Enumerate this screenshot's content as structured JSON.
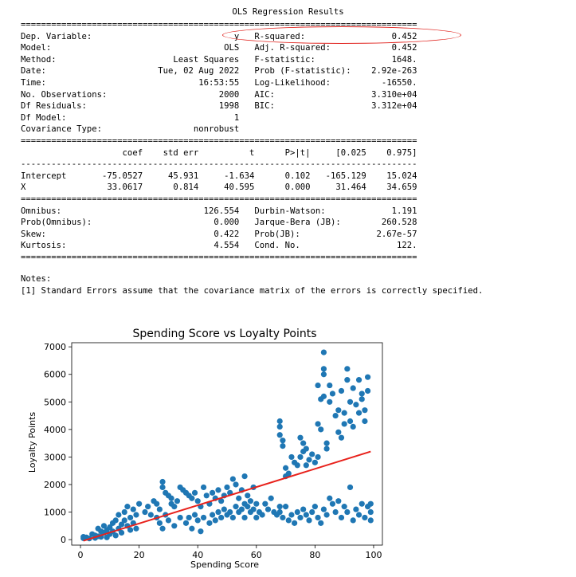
{
  "summary": {
    "title": "OLS Regression Results",
    "separator": "==============================================================================",
    "dash_separator": "------------------------------------------------------------------------------",
    "top_rows": [
      [
        "Dep. Variable:",
        "y",
        "R-squared:",
        "0.452"
      ],
      [
        "Model:",
        "OLS",
        "Adj. R-squared:",
        "0.452"
      ],
      [
        "Method:",
        "Least Squares",
        "F-statistic:",
        "1648."
      ],
      [
        "Date:",
        "Tue, 02 Aug 2022",
        "Prob (F-statistic):",
        "2.92e-263"
      ],
      [
        "Time:",
        "16:53:55",
        "Log-Likelihood:",
        "-16550."
      ],
      [
        "No. Observations:",
        "2000",
        "AIC:",
        "3.310e+04"
      ],
      [
        "Df Residuals:",
        "1998",
        "BIC:",
        "3.312e+04"
      ],
      [
        "Df Model:",
        "1",
        "",
        ""
      ],
      [
        "Covariance Type:",
        "nonrobust",
        "",
        ""
      ]
    ],
    "coef_header": [
      "",
      "coef",
      "std err",
      "t",
      "P>|t|",
      "[0.025",
      "0.975]"
    ],
    "coef_rows": [
      [
        "Intercept",
        "-75.0527",
        "45.931",
        "-1.634",
        "0.102",
        "-165.129",
        "15.024"
      ],
      [
        "X",
        "33.0617",
        "0.814",
        "40.595",
        "0.000",
        "31.464",
        "34.659"
      ]
    ],
    "diag_rows": [
      [
        "Omnibus:",
        "126.554",
        "Durbin-Watson:",
        "1.191"
      ],
      [
        "Prob(Omnibus):",
        "0.000",
        "Jarque-Bera (JB):",
        "260.528"
      ],
      [
        "Skew:",
        "0.422",
        "Prob(JB):",
        "2.67e-57"
      ],
      [
        "Kurtosis:",
        "4.554",
        "Cond. No.",
        "122."
      ]
    ],
    "notes_title": "Notes:",
    "notes_line": "[1] Standard Errors assume that the covariance matrix of the errors is correctly specified."
  },
  "colors": {
    "point": "#1f77b4",
    "fit_line": "#e8211b",
    "highlight": "#e0201b"
  },
  "chart_data": {
    "type": "scatter",
    "title": "Spending Score vs Loyalty Points",
    "xlabel": "Spending Score",
    "ylabel": "Loyalty Points",
    "xlim": [
      -3,
      103
    ],
    "ylim": [
      -200,
      7150
    ],
    "xticks": [
      0,
      20,
      40,
      60,
      80,
      100
    ],
    "yticks": [
      0,
      1000,
      2000,
      3000,
      4000,
      5000,
      6000,
      7000
    ],
    "grid": false,
    "fit_line": {
      "intercept": -75.0527,
      "slope": 33.0617,
      "x": [
        1,
        99
      ]
    },
    "points": [
      [
        1,
        100
      ],
      [
        1,
        50
      ],
      [
        2,
        80
      ],
      [
        3,
        40
      ],
      [
        4,
        200
      ],
      [
        5,
        150
      ],
      [
        5,
        60
      ],
      [
        6,
        120
      ],
      [
        6,
        400
      ],
      [
        7,
        300
      ],
      [
        7,
        100
      ],
      [
        8,
        250
      ],
      [
        8,
        500
      ],
      [
        9,
        350
      ],
      [
        9,
        80
      ],
      [
        10,
        200
      ],
      [
        10,
        450
      ],
      [
        11,
        600
      ],
      [
        11,
        300
      ],
      [
        12,
        150
      ],
      [
        12,
        700
      ],
      [
        13,
        400
      ],
      [
        13,
        900
      ],
      [
        14,
        550
      ],
      [
        14,
        250
      ],
      [
        15,
        1000
      ],
      [
        15,
        700
      ],
      [
        16,
        500
      ],
      [
        16,
        1200
      ],
      [
        17,
        800
      ],
      [
        17,
        350
      ],
      [
        18,
        1100
      ],
      [
        18,
        600
      ],
      [
        19,
        400
      ],
      [
        19,
        900
      ],
      [
        20,
        1300
      ],
      [
        22,
        1000
      ],
      [
        23,
        1200
      ],
      [
        24,
        900
      ],
      [
        25,
        1400
      ],
      [
        26,
        1300
      ],
      [
        27,
        1100
      ],
      [
        28,
        2100
      ],
      [
        28,
        1900
      ],
      [
        29,
        1700
      ],
      [
        30,
        1600
      ],
      [
        31,
        1500
      ],
      [
        31,
        1300
      ],
      [
        32,
        1200
      ],
      [
        33,
        1400
      ],
      [
        34,
        1900
      ],
      [
        35,
        1800
      ],
      [
        36,
        1700
      ],
      [
        37,
        1600
      ],
      [
        37,
        800
      ],
      [
        38,
        1500
      ],
      [
        39,
        1700
      ],
      [
        40,
        1400
      ],
      [
        41,
        1200
      ],
      [
        42,
        1900
      ],
      [
        43,
        1600
      ],
      [
        44,
        1300
      ],
      [
        45,
        1700
      ],
      [
        46,
        1500
      ],
      [
        47,
        1800
      ],
      [
        48,
        1400
      ],
      [
        49,
        1600
      ],
      [
        50,
        1900
      ],
      [
        51,
        1700
      ],
      [
        52,
        2200
      ],
      [
        53,
        2000
      ],
      [
        54,
        1500
      ],
      [
        55,
        1800
      ],
      [
        56,
        2300
      ],
      [
        56,
        1300
      ],
      [
        57,
        1600
      ],
      [
        58,
        1400
      ],
      [
        59,
        1900
      ],
      [
        60,
        1300
      ],
      [
        26,
        800
      ],
      [
        27,
        600
      ],
      [
        28,
        400
      ],
      [
        29,
        900
      ],
      [
        30,
        700
      ],
      [
        32,
        500
      ],
      [
        34,
        800
      ],
      [
        36,
        600
      ],
      [
        38,
        400
      ],
      [
        39,
        900
      ],
      [
        40,
        700
      ],
      [
        41,
        300
      ],
      [
        42,
        800
      ],
      [
        44,
        600
      ],
      [
        45,
        900
      ],
      [
        46,
        700
      ],
      [
        47,
        1000
      ],
      [
        48,
        800
      ],
      [
        49,
        1100
      ],
      [
        50,
        900
      ],
      [
        51,
        1000
      ],
      [
        52,
        800
      ],
      [
        53,
        1200
      ],
      [
        54,
        1000
      ],
      [
        55,
        1100
      ],
      [
        56,
        800
      ],
      [
        57,
        1200
      ],
      [
        58,
        1000
      ],
      [
        59,
        1100
      ],
      [
        60,
        800
      ],
      [
        61,
        1000
      ],
      [
        62,
        900
      ],
      [
        63,
        1300
      ],
      [
        64,
        1100
      ],
      [
        65,
        1500
      ],
      [
        66,
        1000
      ],
      [
        67,
        900
      ],
      [
        68,
        1200
      ],
      [
        68,
        3800
      ],
      [
        68,
        4100
      ],
      [
        68,
        4300
      ],
      [
        69,
        3600
      ],
      [
        69,
        3400
      ],
      [
        70,
        2600
      ],
      [
        70,
        2300
      ],
      [
        71,
        2400
      ],
      [
        72,
        3000
      ],
      [
        73,
        2800
      ],
      [
        74,
        2700
      ],
      [
        75,
        3000
      ],
      [
        75,
        3700
      ],
      [
        76,
        3200
      ],
      [
        76,
        3500
      ],
      [
        77,
        2700
      ],
      [
        77,
        3300
      ],
      [
        78,
        2900
      ],
      [
        79,
        3100
      ],
      [
        80,
        2800
      ],
      [
        81,
        3000
      ],
      [
        81,
        5600
      ],
      [
        81,
        4200
      ],
      [
        82,
        4000
      ],
      [
        82,
        5100
      ],
      [
        83,
        6800
      ],
      [
        83,
        6200
      ],
      [
        83,
        6000
      ],
      [
        83,
        5200
      ],
      [
        84,
        3500
      ],
      [
        84,
        3300
      ],
      [
        85,
        5000
      ],
      [
        85,
        5600
      ],
      [
        86,
        5300
      ],
      [
        87,
        4500
      ],
      [
        88,
        4700
      ],
      [
        88,
        3900
      ],
      [
        89,
        5400
      ],
      [
        89,
        3700
      ],
      [
        90,
        4600
      ],
      [
        90,
        4200
      ],
      [
        91,
        5800
      ],
      [
        91,
        6200
      ],
      [
        92,
        5000
      ],
      [
        92,
        4300
      ],
      [
        93,
        5500
      ],
      [
        93,
        4100
      ],
      [
        94,
        4900
      ],
      [
        95,
        4600
      ],
      [
        95,
        5800
      ],
      [
        96,
        5300
      ],
      [
        96,
        5100
      ],
      [
        97,
        4700
      ],
      [
        97,
        4300
      ],
      [
        98,
        5900
      ],
      [
        98,
        5400
      ],
      [
        68,
        1000
      ],
      [
        69,
        800
      ],
      [
        70,
        1200
      ],
      [
        71,
        700
      ],
      [
        72,
        900
      ],
      [
        73,
        600
      ],
      [
        74,
        1000
      ],
      [
        75,
        800
      ],
      [
        76,
        1100
      ],
      [
        77,
        900
      ],
      [
        78,
        700
      ],
      [
        79,
        1000
      ],
      [
        80,
        1200
      ],
      [
        81,
        800
      ],
      [
        82,
        600
      ],
      [
        83,
        1100
      ],
      [
        84,
        900
      ],
      [
        85,
        1500
      ],
      [
        86,
        1300
      ],
      [
        87,
        1000
      ],
      [
        88,
        1400
      ],
      [
        89,
        800
      ],
      [
        90,
        1200
      ],
      [
        91,
        1000
      ],
      [
        92,
        1900
      ],
      [
        93,
        700
      ],
      [
        94,
        1100
      ],
      [
        95,
        900
      ],
      [
        96,
        1300
      ],
      [
        97,
        800
      ],
      [
        98,
        1200
      ],
      [
        99,
        1000
      ],
      [
        99,
        700
      ],
      [
        99,
        1300
      ]
    ]
  }
}
